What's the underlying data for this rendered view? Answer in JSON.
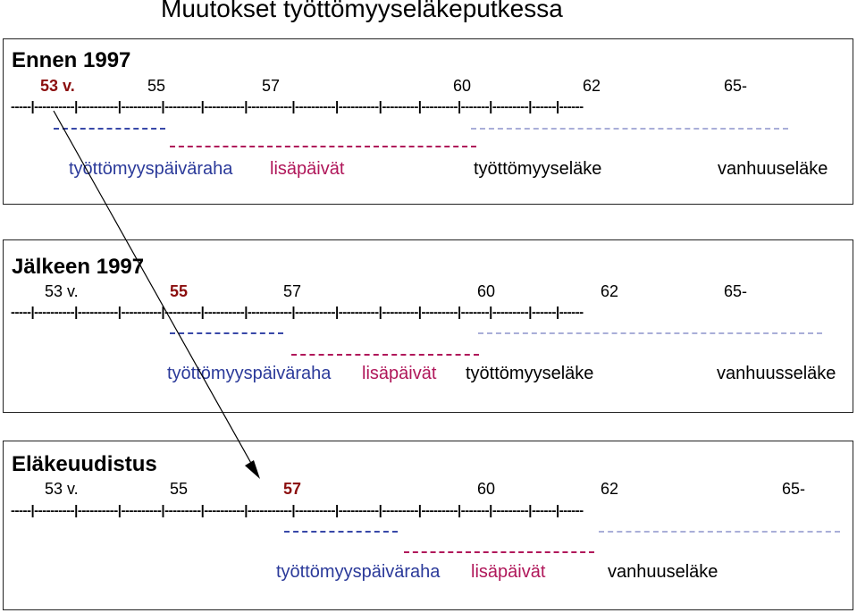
{
  "title": "Muutokset työttömyyseläkeputkessa",
  "ruler_text": "-----|----------|----------|----------|---------|----------|-----------|----------|----------|---------|---------|-------|---------|------|------",
  "panels": [
    {
      "heading": "Ennen 1997",
      "ages": [
        "53 v.",
        "55",
        "57",
        "60",
        "62",
        "65-"
      ],
      "highlight_age": "53 v.",
      "labels": {
        "daily": "työttömyyspäiväraha",
        "extra": "lisäpäivät",
        "pension": "työttömyyseläke",
        "old": "vanhuuseläke"
      }
    },
    {
      "heading": "Jälkeen 1997",
      "ages": [
        "53 v.",
        "55",
        "57",
        "60",
        "62",
        "65-"
      ],
      "highlight_age": "55",
      "labels": {
        "daily": "työttömyyspäiväraha",
        "extra": "lisäpäivät",
        "pension": "työttömyyseläke",
        "old": "vanhuusseläke"
      }
    },
    {
      "heading": "Eläkeuudistus",
      "ages": [
        "53 v.",
        "55",
        "57",
        "60",
        "62",
        "65-"
      ],
      "highlight_age": "57",
      "labels": {
        "daily": "työttömyyspäiväraha",
        "extra": "lisäpäivät",
        "old": "vanhuuseläke"
      }
    }
  ],
  "colors": {
    "blue": "#2b3a9a",
    "magenta": "#b0175a",
    "red": "#8b0e0e",
    "light_blue": "#a9aed8"
  }
}
